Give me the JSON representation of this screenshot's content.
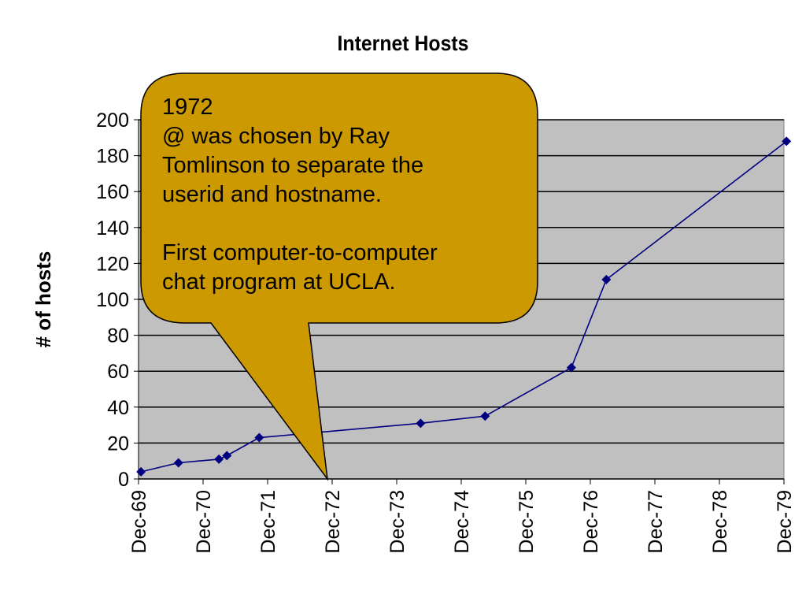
{
  "chart_data": {
    "type": "line",
    "title": "Internet Hosts",
    "xlabel": "",
    "ylabel": "# of hosts",
    "ylim": [
      0,
      200
    ],
    "yticks": [
      0,
      20,
      40,
      60,
      80,
      100,
      120,
      140,
      160,
      180,
      200
    ],
    "xlim": [
      "1969-12-01",
      "1979-12-01"
    ],
    "xtick_labels": [
      "Dec-69",
      "Dec-70",
      "Dec-71",
      "Dec-72",
      "Dec-73",
      "Dec-74",
      "Dec-75",
      "Dec-76",
      "Dec-77",
      "Dec-78",
      "Dec-79"
    ],
    "grid": "horizontal",
    "x": [
      "1969-12-15",
      "1970-07-15",
      "1971-03-01",
      "1971-04-15",
      "1971-10-15",
      "1974-04-15",
      "1975-04-15",
      "1976-08-15",
      "1977-03-01",
      "1979-12-15"
    ],
    "series": [
      {
        "values": [
          4,
          9,
          11,
          13,
          23,
          31,
          35,
          62,
          111,
          188
        ]
      }
    ],
    "colors": {
      "line": "#000080",
      "marker": "#000080",
      "plot_bg": "#c0c0c0",
      "callout_fill": "#cc9900"
    }
  },
  "callout": {
    "lines": [
      "1972",
      "@ was chosen by Ray",
      "Tomlinson to separate the",
      "userid and hostname.",
      "",
      "First computer-to-computer",
      "chat program at UCLA."
    ]
  }
}
